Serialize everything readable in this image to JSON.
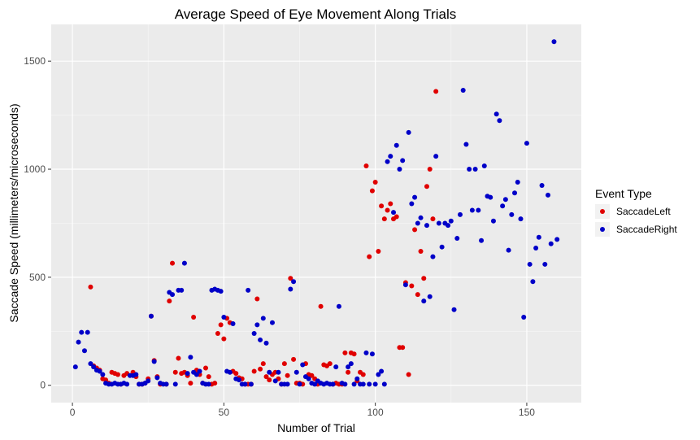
{
  "chart_data": {
    "type": "scatter",
    "title": "Average Speed of Eye Movement Along Trials",
    "xlabel": "Number of Trial",
    "ylabel": "Saccade Speed (millimeters/microseconds)",
    "xlim": [
      -7,
      168
    ],
    "ylim": [
      -80,
      1670
    ],
    "xticks": [
      0,
      50,
      100,
      150
    ],
    "yticks": [
      0,
      500,
      1000,
      1500
    ],
    "grid": true,
    "legend": {
      "title": "Event Type",
      "position": "right"
    },
    "series": [
      {
        "name": "SaccadeLeft",
        "color": "#e00000",
        "points": [
          [
            6,
            455
          ],
          [
            7,
            90
          ],
          [
            8,
            80
          ],
          [
            9,
            70
          ],
          [
            10,
            30
          ],
          [
            11,
            25
          ],
          [
            12,
            10
          ],
          [
            13,
            60
          ],
          [
            14,
            55
          ],
          [
            15,
            50
          ],
          [
            16,
            5
          ],
          [
            17,
            45
          ],
          [
            18,
            55
          ],
          [
            20,
            60
          ],
          [
            21,
            40
          ],
          [
            22,
            5
          ],
          [
            23,
            5
          ],
          [
            24,
            10
          ],
          [
            25,
            30
          ],
          [
            26,
            320
          ],
          [
            27,
            115
          ],
          [
            28,
            40
          ],
          [
            29,
            5
          ],
          [
            31,
            5
          ],
          [
            32,
            390
          ],
          [
            33,
            565
          ],
          [
            34,
            60
          ],
          [
            35,
            125
          ],
          [
            36,
            55
          ],
          [
            37,
            60
          ],
          [
            38,
            45
          ],
          [
            39,
            10
          ],
          [
            40,
            315
          ],
          [
            41,
            70
          ],
          [
            42,
            50
          ],
          [
            43,
            10
          ],
          [
            44,
            80
          ],
          [
            45,
            40
          ],
          [
            46,
            5
          ],
          [
            47,
            10
          ],
          [
            48,
            240
          ],
          [
            49,
            280
          ],
          [
            50,
            215
          ],
          [
            51,
            310
          ],
          [
            52,
            290
          ],
          [
            53,
            65
          ],
          [
            54,
            55
          ],
          [
            55,
            35
          ],
          [
            56,
            30
          ],
          [
            57,
            5
          ],
          [
            58,
            5
          ],
          [
            59,
            5
          ],
          [
            60,
            65
          ],
          [
            61,
            400
          ],
          [
            62,
            75
          ],
          [
            63,
            100
          ],
          [
            64,
            40
          ],
          [
            65,
            25
          ],
          [
            66,
            50
          ],
          [
            67,
            60
          ],
          [
            68,
            30
          ],
          [
            69,
            5
          ],
          [
            70,
            100
          ],
          [
            71,
            45
          ],
          [
            72,
            495
          ],
          [
            73,
            120
          ],
          [
            74,
            10
          ],
          [
            75,
            10
          ],
          [
            76,
            5
          ],
          [
            77,
            100
          ],
          [
            78,
            50
          ],
          [
            79,
            45
          ],
          [
            80,
            30
          ],
          [
            81,
            5
          ],
          [
            82,
            365
          ],
          [
            83,
            95
          ],
          [
            84,
            90
          ],
          [
            85,
            100
          ],
          [
            86,
            5
          ],
          [
            87,
            10
          ],
          [
            88,
            5
          ],
          [
            89,
            5
          ],
          [
            90,
            150
          ],
          [
            91,
            60
          ],
          [
            92,
            150
          ],
          [
            93,
            145
          ],
          [
            94,
            20
          ],
          [
            95,
            60
          ],
          [
            96,
            50
          ],
          [
            97,
            1015
          ],
          [
            98,
            595
          ],
          [
            99,
            900
          ],
          [
            100,
            940
          ],
          [
            101,
            620
          ],
          [
            102,
            830
          ],
          [
            103,
            770
          ],
          [
            104,
            810
          ],
          [
            105,
            840
          ],
          [
            106,
            770
          ],
          [
            107,
            780
          ],
          [
            108,
            175
          ],
          [
            109,
            175
          ],
          [
            110,
            475
          ],
          [
            111,
            50
          ],
          [
            112,
            460
          ],
          [
            113,
            720
          ],
          [
            114,
            420
          ],
          [
            115,
            620
          ],
          [
            116,
            495
          ],
          [
            117,
            920
          ],
          [
            118,
            1000
          ],
          [
            119,
            770
          ],
          [
            120,
            1360
          ]
        ]
      },
      {
        "name": "SaccadeRight",
        "color": "#0000c8",
        "points": [
          [
            1,
            85
          ],
          [
            2,
            200
          ],
          [
            3,
            245
          ],
          [
            4,
            160
          ],
          [
            5,
            245
          ],
          [
            6,
            100
          ],
          [
            7,
            85
          ],
          [
            8,
            70
          ],
          [
            9,
            65
          ],
          [
            10,
            50
          ],
          [
            11,
            10
          ],
          [
            12,
            5
          ],
          [
            13,
            5
          ],
          [
            14,
            10
          ],
          [
            15,
            5
          ],
          [
            16,
            5
          ],
          [
            17,
            10
          ],
          [
            18,
            5
          ],
          [
            19,
            45
          ],
          [
            20,
            45
          ],
          [
            21,
            50
          ],
          [
            22,
            5
          ],
          [
            23,
            5
          ],
          [
            24,
            10
          ],
          [
            25,
            20
          ],
          [
            26,
            320
          ],
          [
            27,
            110
          ],
          [
            28,
            35
          ],
          [
            29,
            10
          ],
          [
            30,
            5
          ],
          [
            31,
            5
          ],
          [
            32,
            430
          ],
          [
            33,
            420
          ],
          [
            34,
            5
          ],
          [
            35,
            440
          ],
          [
            36,
            440
          ],
          [
            37,
            565
          ],
          [
            38,
            55
          ],
          [
            39,
            130
          ],
          [
            40,
            60
          ],
          [
            41,
            50
          ],
          [
            42,
            65
          ],
          [
            43,
            10
          ],
          [
            44,
            5
          ],
          [
            45,
            5
          ],
          [
            46,
            440
          ],
          [
            47,
            445
          ],
          [
            48,
            440
          ],
          [
            49,
            435
          ],
          [
            50,
            315
          ],
          [
            51,
            65
          ],
          [
            52,
            60
          ],
          [
            53,
            285
          ],
          [
            54,
            30
          ],
          [
            55,
            25
          ],
          [
            56,
            5
          ],
          [
            57,
            5
          ],
          [
            58,
            440
          ],
          [
            59,
            5
          ],
          [
            60,
            240
          ],
          [
            61,
            280
          ],
          [
            62,
            210
          ],
          [
            63,
            310
          ],
          [
            64,
            195
          ],
          [
            65,
            60
          ],
          [
            66,
            290
          ],
          [
            67,
            20
          ],
          [
            68,
            60
          ],
          [
            69,
            5
          ],
          [
            70,
            5
          ],
          [
            71,
            5
          ],
          [
            72,
            445
          ],
          [
            73,
            480
          ],
          [
            74,
            60
          ],
          [
            75,
            5
          ],
          [
            76,
            95
          ],
          [
            77,
            40
          ],
          [
            78,
            30
          ],
          [
            79,
            10
          ],
          [
            80,
            5
          ],
          [
            81,
            20
          ],
          [
            82,
            10
          ],
          [
            83,
            5
          ],
          [
            84,
            10
          ],
          [
            85,
            5
          ],
          [
            86,
            5
          ],
          [
            87,
            85
          ],
          [
            88,
            365
          ],
          [
            89,
            10
          ],
          [
            90,
            5
          ],
          [
            91,
            85
          ],
          [
            92,
            100
          ],
          [
            93,
            5
          ],
          [
            94,
            30
          ],
          [
            95,
            5
          ],
          [
            96,
            5
          ],
          [
            97,
            150
          ],
          [
            98,
            5
          ],
          [
            99,
            145
          ],
          [
            100,
            5
          ],
          [
            101,
            50
          ],
          [
            102,
            65
          ],
          [
            103,
            5
          ],
          [
            104,
            1035
          ],
          [
            105,
            1060
          ],
          [
            106,
            800
          ],
          [
            107,
            1110
          ],
          [
            108,
            1000
          ],
          [
            109,
            1040
          ],
          [
            110,
            465
          ],
          [
            111,
            1170
          ],
          [
            112,
            840
          ],
          [
            113,
            870
          ],
          [
            114,
            750
          ],
          [
            115,
            775
          ],
          [
            116,
            390
          ],
          [
            117,
            740
          ],
          [
            118,
            410
          ],
          [
            119,
            595
          ],
          [
            120,
            1060
          ],
          [
            121,
            750
          ],
          [
            122,
            640
          ],
          [
            123,
            750
          ],
          [
            124,
            740
          ],
          [
            125,
            760
          ],
          [
            126,
            350
          ],
          [
            127,
            680
          ],
          [
            128,
            790
          ],
          [
            129,
            1365
          ],
          [
            130,
            1115
          ],
          [
            131,
            1000
          ],
          [
            132,
            810
          ],
          [
            133,
            1000
          ],
          [
            134,
            810
          ],
          [
            135,
            670
          ],
          [
            136,
            1015
          ],
          [
            137,
            875
          ],
          [
            138,
            870
          ],
          [
            139,
            760
          ],
          [
            140,
            1255
          ],
          [
            141,
            1225
          ],
          [
            142,
            830
          ],
          [
            143,
            860
          ],
          [
            144,
            625
          ],
          [
            145,
            790
          ],
          [
            146,
            890
          ],
          [
            147,
            940
          ],
          [
            148,
            770
          ],
          [
            149,
            315
          ],
          [
            150,
            1120
          ],
          [
            151,
            560
          ],
          [
            152,
            480
          ],
          [
            153,
            635
          ],
          [
            154,
            685
          ],
          [
            155,
            925
          ],
          [
            156,
            560
          ],
          [
            157,
            880
          ],
          [
            158,
            655
          ],
          [
            159,
            1590
          ],
          [
            160,
            675
          ]
        ]
      }
    ]
  }
}
